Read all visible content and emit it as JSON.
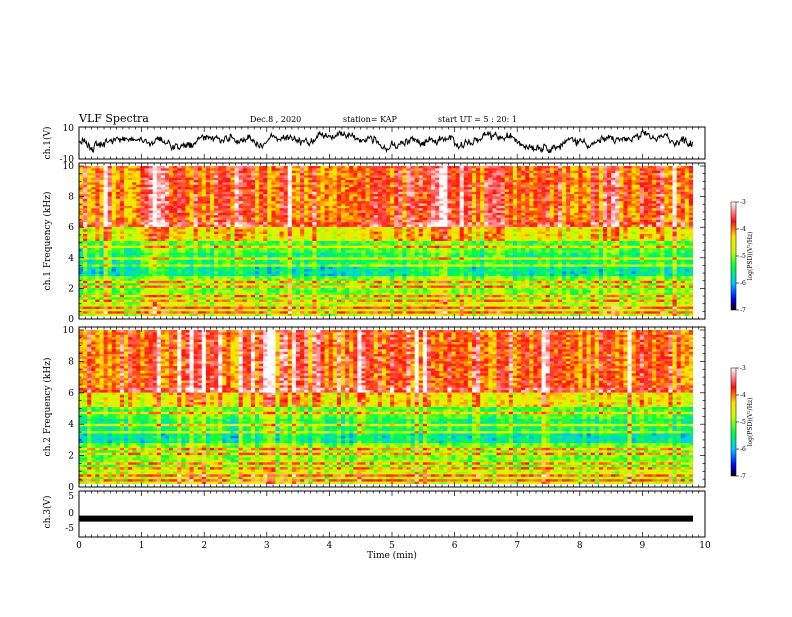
{
  "header": {
    "title": "VLF Spectra",
    "date": "Dec.8 , 2020",
    "station": "station= KAP",
    "start": "start UT = 5 : 20: 1"
  },
  "chart_data": [
    {
      "type": "line",
      "id": "ch1-waveform",
      "ylabel": "ch.1(V)",
      "ylim": [
        -10,
        10
      ],
      "yticks": [
        "10",
        "-10"
      ],
      "xlim": [
        0,
        10
      ],
      "description_values": "waveform oscillating roughly between -4 and 6 V, mostly near 0 to 4 V"
    },
    {
      "type": "heatmap",
      "id": "ch1-spectrogram",
      "ylabel": "ch.1 Frequency (kHz)",
      "ylim": [
        0,
        10
      ],
      "yticks": [
        "0",
        "2",
        "4",
        "6",
        "8",
        "10"
      ],
      "xlim": [
        0,
        9.8
      ],
      "colorbar": {
        "label": "log(PSD)(V²/Hz)",
        "range": [
          -7,
          -3
        ],
        "ticks": [
          "-3",
          "-4",
          "-5",
          "-6",
          "-7"
        ]
      }
    },
    {
      "type": "heatmap",
      "id": "ch2-spectrogram",
      "ylabel": "ch.2 Frequency (kHz)",
      "ylim": [
        0,
        10
      ],
      "yticks": [
        "0",
        "2",
        "4",
        "6",
        "8",
        "10"
      ],
      "xlim": [
        0,
        9.8
      ],
      "colorbar": {
        "label": "log(PSD)(V²/Hz)",
        "range": [
          -7,
          -3
        ],
        "ticks": [
          "-3",
          "-4",
          "-5",
          "-6",
          "-7"
        ]
      }
    },
    {
      "type": "line",
      "id": "ch3-waveform",
      "ylabel": "ch.3(V)",
      "ylim": [
        -5,
        5
      ],
      "yticks": [
        "5",
        "0",
        "-5"
      ],
      "xlim": [
        0,
        10
      ],
      "level": -1.0
    }
  ],
  "xaxis": {
    "label": "Time (min)",
    "ticks": [
      "0",
      "1",
      "2",
      "3",
      "4",
      "5",
      "6",
      "7",
      "8",
      "9",
      "10"
    ]
  }
}
